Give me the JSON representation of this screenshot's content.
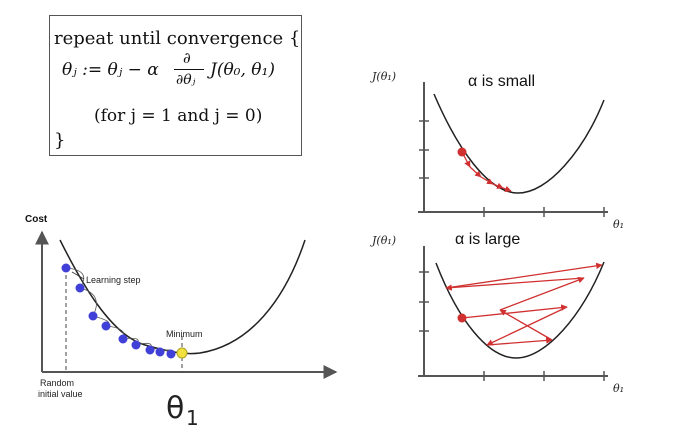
{
  "formula": {
    "line1": "repeat until convergence {",
    "line2_lhs": "θⱼ := θⱼ − α",
    "frac_num": "∂",
    "frac_den": "∂θⱼ",
    "line2_rhs": "J(θ₀, θ₁)",
    "line3": "(for j = 1 and j = 0)",
    "line4": "}"
  },
  "left_plot": {
    "y_label": "Cost",
    "learning_step_label": "Learning step",
    "minimum_label": "Minimum",
    "random_label_1": "Random",
    "random_label_2": "initial value",
    "x_symbol": "θ",
    "x_subscript": "1",
    "point_color": "#4040d8",
    "minimum_color": "#f0e040"
  },
  "top_right_plot": {
    "y_label": "J(θ₁)",
    "x_label": "θ₁",
    "title": "α is small",
    "arrow_color": "#d03030"
  },
  "bottom_right_plot": {
    "y_label": "J(θ₁)",
    "x_label": "θ₁",
    "title": "α is large",
    "arrow_color": "#d03030"
  }
}
